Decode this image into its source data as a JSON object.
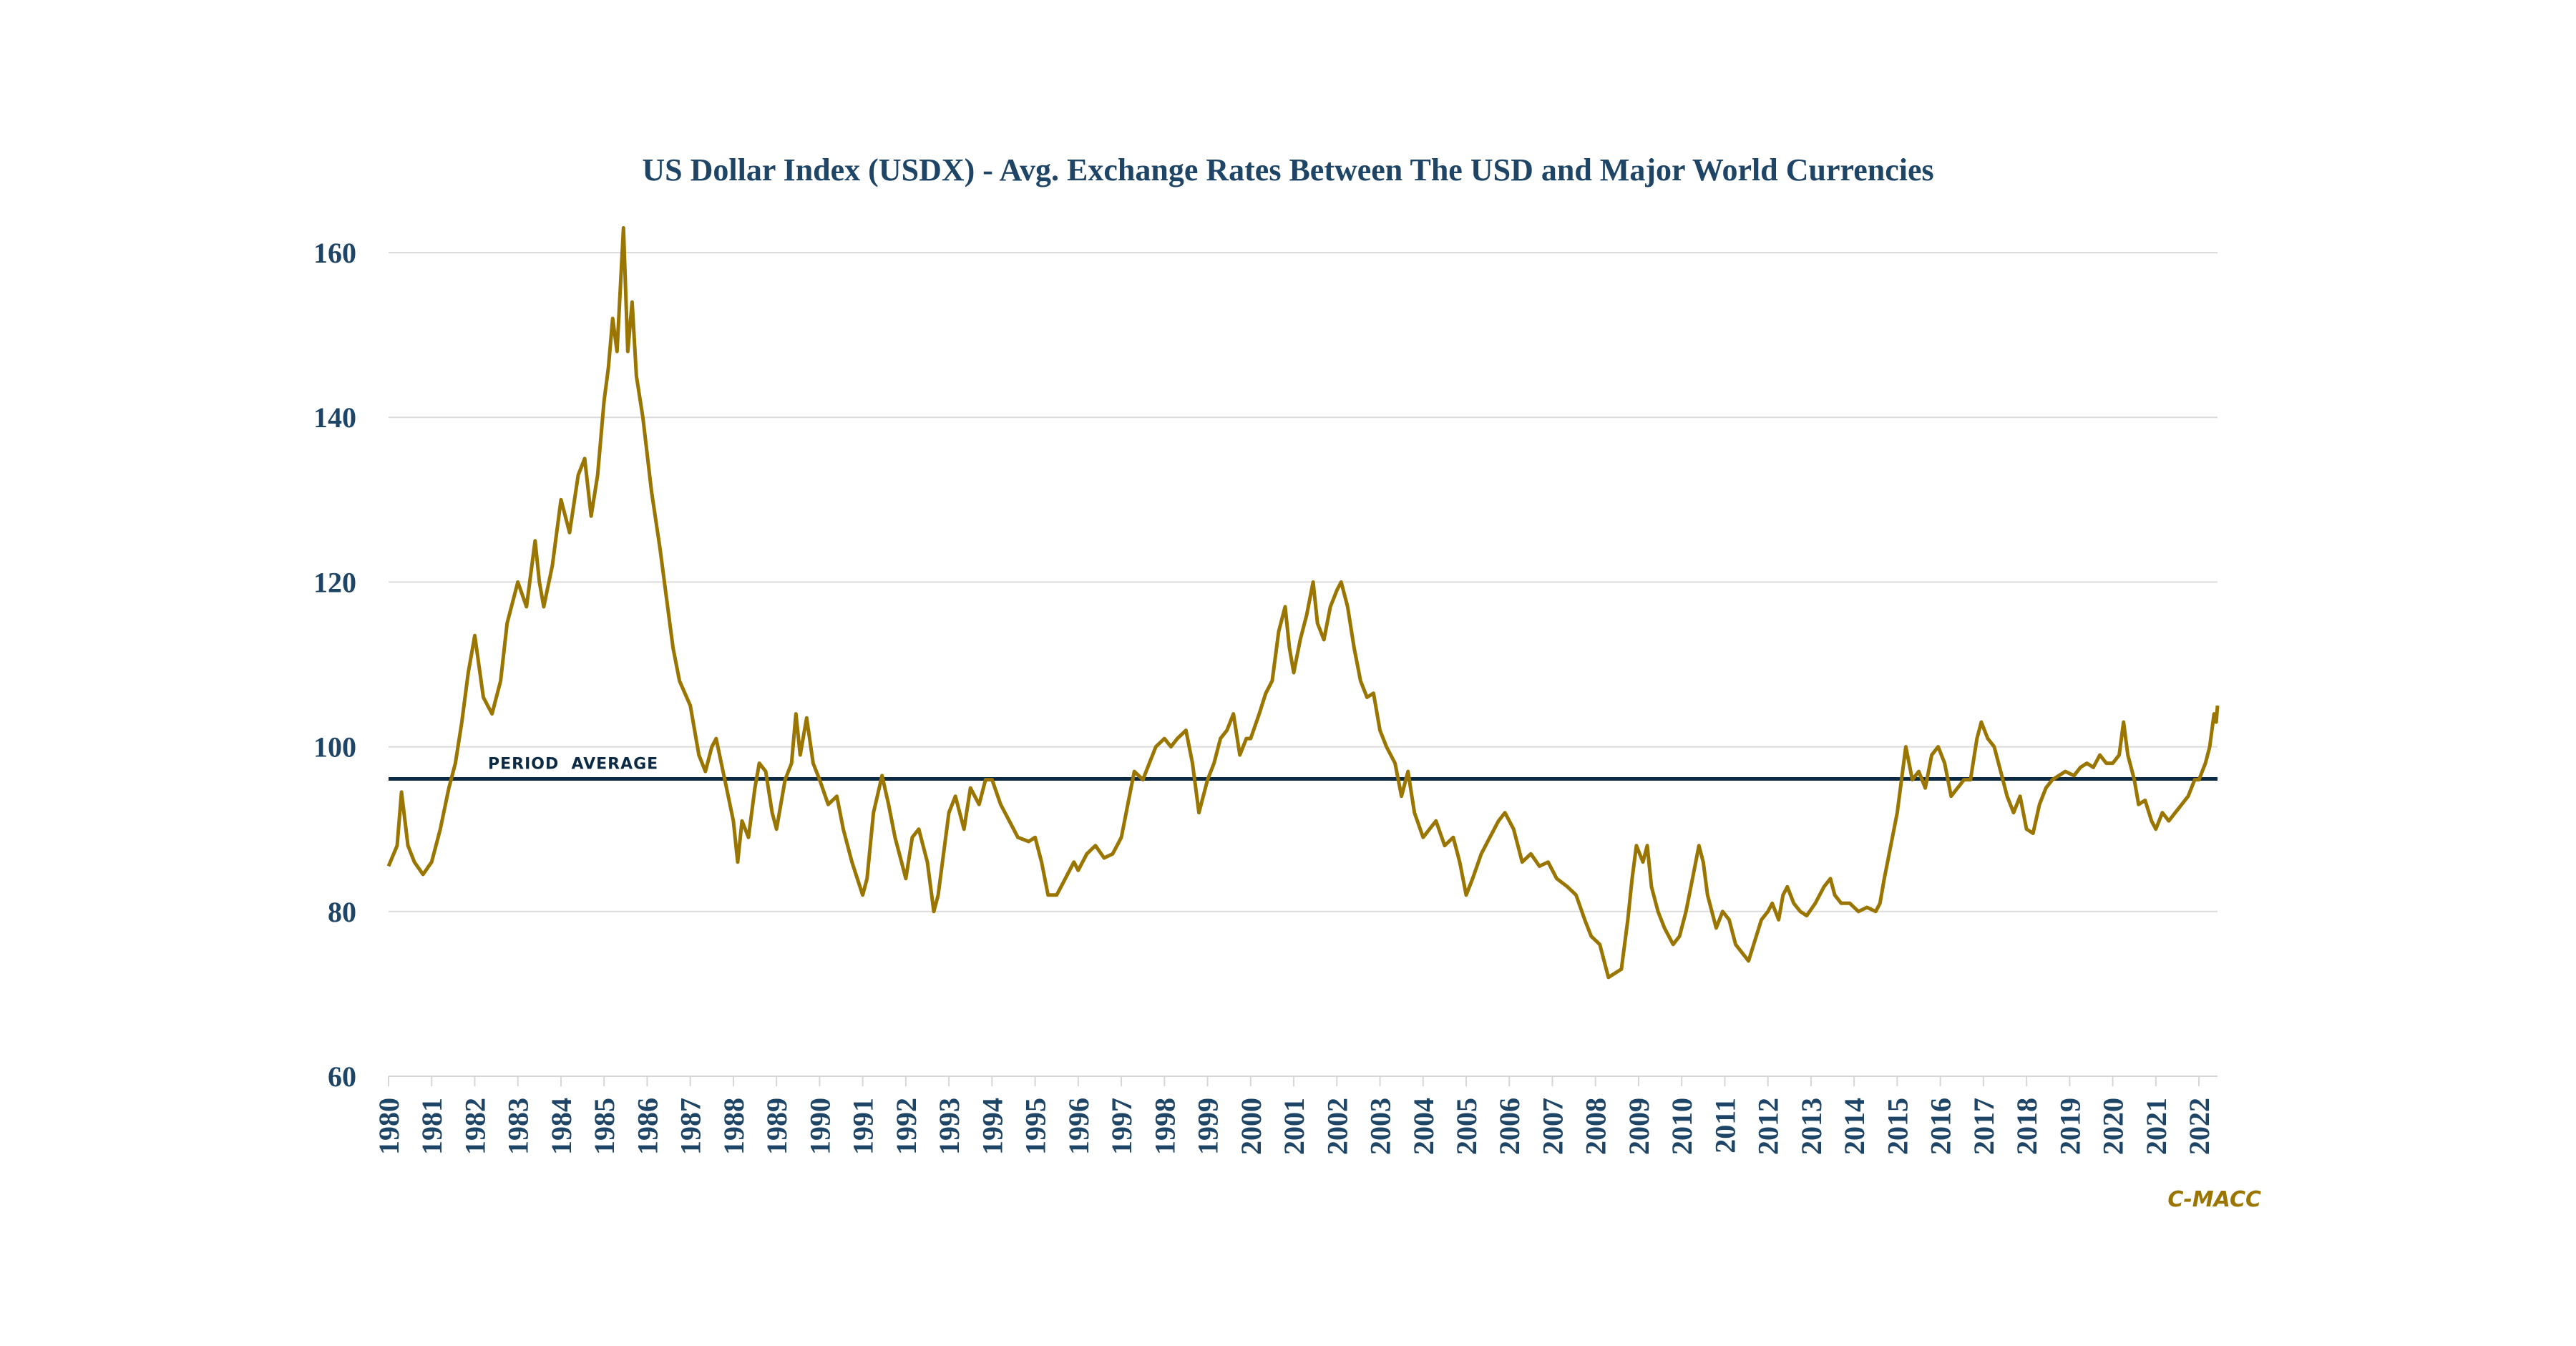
{
  "chart_data": {
    "type": "line",
    "title": "US Dollar Index (USDX) - Avg. Exchange Rates Between The USD and Major World Currencies",
    "xlabel": "",
    "ylabel": "",
    "xlim": [
      1980,
      2022.43
    ],
    "ylim": [
      60,
      165
    ],
    "y_ticks": [
      60,
      80,
      100,
      120,
      140,
      160
    ],
    "x_ticks": [
      1980,
      1981,
      1982,
      1983,
      1984,
      1985,
      1986,
      1987,
      1988,
      1989,
      1990,
      1991,
      1992,
      1993,
      1994,
      1995,
      1996,
      1997,
      1998,
      1999,
      2000,
      2001,
      2002,
      2003,
      2004,
      2005,
      2006,
      2007,
      2008,
      2009,
      2010,
      2011,
      2012,
      2013,
      2014,
      2015,
      2016,
      2017,
      2018,
      2019,
      2020,
      2021,
      2022
    ],
    "grid": true,
    "legend": "none",
    "reference_line": {
      "label": "PERIOD  AVERAGE",
      "value": 96.1
    },
    "credit": "C-MACC",
    "colors": {
      "series": "#9a7600",
      "average": "#0d2a45",
      "text": "#1f4566",
      "grid": "#dcdcdc"
    },
    "series": [
      {
        "name": "USDX",
        "x": [
          1980.0,
          1980.2,
          1980.3,
          1980.45,
          1980.6,
          1980.8,
          1981.0,
          1981.2,
          1981.4,
          1981.55,
          1981.7,
          1981.85,
          1982.0,
          1982.2,
          1982.4,
          1982.6,
          1982.75,
          1983.0,
          1983.2,
          1983.4,
          1983.5,
          1983.6,
          1983.8,
          1984.0,
          1984.2,
          1984.4,
          1984.55,
          1984.7,
          1984.85,
          1985.0,
          1985.1,
          1985.2,
          1985.3,
          1985.45,
          1985.55,
          1985.65,
          1985.75,
          1985.9,
          1986.1,
          1986.3,
          1986.45,
          1986.6,
          1986.75,
          1987.0,
          1987.2,
          1987.35,
          1987.5,
          1987.6,
          1987.8,
          1988.0,
          1988.1,
          1988.2,
          1988.35,
          1988.5,
          1988.6,
          1988.75,
          1988.9,
          1989.0,
          1989.2,
          1989.35,
          1989.45,
          1989.55,
          1989.7,
          1989.85,
          1990.0,
          1990.2,
          1990.4,
          1990.55,
          1990.75,
          1991.0,
          1991.1,
          1991.25,
          1991.45,
          1991.6,
          1991.75,
          1991.9,
          1992.0,
          1992.15,
          1992.3,
          1992.5,
          1992.65,
          1992.75,
          1992.85,
          1993.0,
          1993.15,
          1993.35,
          1993.5,
          1993.7,
          1993.85,
          1994.0,
          1994.2,
          1994.4,
          1994.6,
          1994.85,
          1995.0,
          1995.15,
          1995.3,
          1995.5,
          1995.7,
          1995.9,
          1996.0,
          1996.2,
          1996.4,
          1996.6,
          1996.8,
          1997.0,
          1997.15,
          1997.3,
          1997.5,
          1997.65,
          1997.8,
          1998.0,
          1998.15,
          1998.3,
          1998.5,
          1998.65,
          1998.8,
          1999.0,
          1999.15,
          1999.3,
          1999.45,
          1999.6,
          1999.75,
          1999.9,
          2000.0,
          2000.2,
          2000.35,
          2000.5,
          2000.65,
          2000.8,
          2000.9,
          2001.0,
          2001.15,
          2001.3,
          2001.45,
          2001.55,
          2001.7,
          2001.85,
          2002.0,
          2002.1,
          2002.25,
          2002.4,
          2002.55,
          2002.7,
          2002.85,
          2003.0,
          2003.15,
          2003.35,
          2003.5,
          2003.65,
          2003.8,
          2004.0,
          2004.15,
          2004.3,
          2004.5,
          2004.7,
          2004.85,
          2005.0,
          2005.15,
          2005.35,
          2005.55,
          2005.75,
          2005.9,
          2006.1,
          2006.3,
          2006.5,
          2006.7,
          2006.9,
          2007.1,
          2007.35,
          2007.55,
          2007.75,
          2007.9,
          2008.1,
          2008.3,
          2008.45,
          2008.6,
          2008.75,
          2008.85,
          2008.95,
          2009.1,
          2009.2,
          2009.3,
          2009.45,
          2009.6,
          2009.8,
          2009.95,
          2010.1,
          2010.25,
          2010.4,
          2010.5,
          2010.6,
          2010.8,
          2010.95,
          2011.1,
          2011.25,
          2011.4,
          2011.55,
          2011.7,
          2011.85,
          2012.0,
          2012.1,
          2012.25,
          2012.35,
          2012.45,
          2012.6,
          2012.75,
          2012.9,
          2013.1,
          2013.3,
          2013.45,
          2013.55,
          2013.7,
          2013.9,
          2014.1,
          2014.3,
          2014.5,
          2014.6,
          2014.7,
          2014.85,
          2015.0,
          2015.1,
          2015.2,
          2015.35,
          2015.5,
          2015.65,
          2015.8,
          2015.95,
          2016.1,
          2016.25,
          2016.4,
          2016.55,
          2016.7,
          2016.85,
          2016.95,
          2017.1,
          2017.25,
          2017.4,
          2017.55,
          2017.7,
          2017.85,
          2018.0,
          2018.15,
          2018.3,
          2018.45,
          2018.6,
          2018.75,
          2018.9,
          2019.1,
          2019.25,
          2019.4,
          2019.55,
          2019.7,
          2019.85,
          2020.0,
          2020.15,
          2020.25,
          2020.35,
          2020.5,
          2020.6,
          2020.75,
          2020.9,
          2021.0,
          2021.15,
          2021.3,
          2021.45,
          2021.6,
          2021.75,
          2021.9,
          2022.0,
          2022.15,
          2022.25,
          2022.35,
          2022.4,
          2022.43
        ],
        "values": [
          85.5,
          88,
          94.5,
          88,
          86,
          84.5,
          86,
          90,
          95,
          98,
          103,
          109,
          113.5,
          106,
          104,
          108,
          115,
          120,
          117,
          125,
          120,
          117,
          122,
          130,
          126,
          133,
          135,
          128,
          133,
          142,
          146,
          152,
          148,
          163,
          148,
          154,
          145,
          140,
          131,
          124,
          118,
          112,
          108,
          105,
          99,
          97,
          100,
          101,
          96,
          91,
          86,
          91,
          89,
          95,
          98,
          97,
          92,
          90,
          96,
          98,
          104,
          99,
          103.5,
          98,
          96,
          93,
          94,
          90,
          86,
          82,
          84,
          92,
          96.5,
          93,
          89,
          86,
          84,
          89,
          90,
          86,
          80,
          82,
          86,
          92,
          94,
          90,
          95,
          93,
          96,
          96,
          93,
          91,
          89,
          88.5,
          89,
          86,
          82,
          82,
          84,
          86,
          85,
          87,
          88,
          86.5,
          87,
          89,
          93,
          97,
          96,
          98,
          100,
          101,
          100,
          101,
          102,
          98,
          92,
          96,
          98,
          101,
          102,
          104,
          99,
          101,
          101,
          104,
          106.5,
          108,
          114,
          117,
          112,
          109,
          113,
          116,
          120,
          115,
          113,
          117,
          119,
          120,
          117,
          112,
          108,
          106,
          106.5,
          102,
          100,
          98,
          94,
          97,
          92,
          89,
          90,
          91,
          88,
          89,
          86,
          82,
          84,
          87,
          89,
          91,
          92,
          90,
          86,
          87,
          85.5,
          86,
          84,
          83,
          82,
          79,
          77,
          76,
          72,
          72.5,
          73,
          79,
          84,
          88,
          86,
          88,
          83,
          80,
          78,
          76,
          77,
          80,
          84,
          88,
          86,
          82,
          78,
          80,
          79,
          76,
          75,
          74,
          76.5,
          79,
          80,
          81,
          79,
          82,
          83,
          81,
          80,
          79.5,
          81,
          83,
          84,
          82,
          81,
          81,
          80,
          80.5,
          80,
          81,
          84,
          88,
          92,
          96,
          100,
          96,
          97,
          95,
          99,
          100,
          98,
          94,
          95,
          96,
          96,
          101,
          103,
          101,
          100,
          97,
          94,
          92,
          94,
          90,
          89.5,
          93,
          95,
          96,
          96.5,
          97,
          96.5,
          97.5,
          98,
          97.5,
          99,
          98,
          98,
          99,
          103,
          99,
          96,
          93,
          93.5,
          91,
          90,
          92,
          91,
          92,
          93,
          94,
          96,
          96,
          98,
          100,
          104,
          103,
          105
        ]
      }
    ]
  }
}
